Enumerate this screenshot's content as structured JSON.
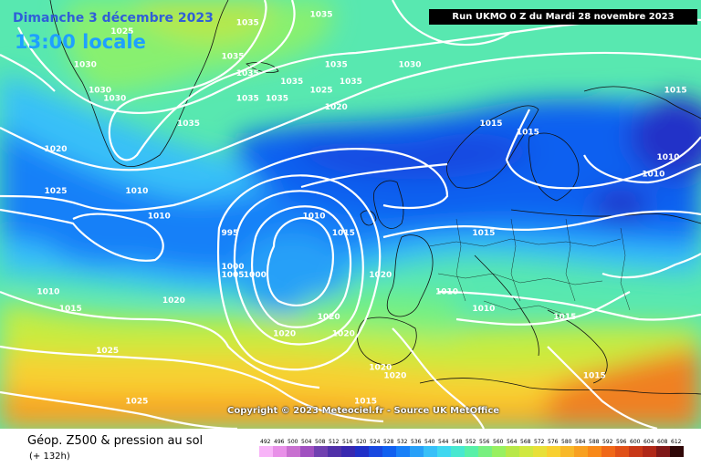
{
  "header": {
    "date": "Dimanche 3 décembre 2023",
    "time": "13:00 locale",
    "run": "Run UKMO 0 Z du Mardi 28 novembre 2023"
  },
  "copyright": "Copyright © 2023 Meteociel.fr - Source UK MetOffice",
  "legend": {
    "title": "Géop. Z500 & pression au sol",
    "subtitle": "(+ 132h)",
    "scale_values": [
      "492",
      "496",
      "500",
      "504",
      "508",
      "512",
      "516",
      "520",
      "524",
      "528",
      "532",
      "536",
      "540",
      "544",
      "548",
      "552",
      "556",
      "560",
      "564",
      "568",
      "572",
      "576",
      "580",
      "584",
      "588",
      "592",
      "596",
      "600",
      "604",
      "608",
      "612"
    ],
    "scale_colors": [
      "#f8b4f8",
      "#e890e8",
      "#c870d0",
      "#a050c0",
      "#7040b0",
      "#5030a8",
      "#3828b0",
      "#2030c8",
      "#1848e0",
      "#1060f0",
      "#1880f8",
      "#28a0f8",
      "#38c0f8",
      "#40d8f0",
      "#48e8d0",
      "#58f0a8",
      "#78f080",
      "#98f060",
      "#b8e848",
      "#d0e840",
      "#e8e038",
      "#f8d030",
      "#f8b828",
      "#f8a020",
      "#f88818",
      "#f06818",
      "#e05018",
      "#c83818",
      "#b02818",
      "#801818",
      "#300808"
    ]
  },
  "isobars": [
    {
      "value": "1025",
      "lon": -35,
      "lat": 74
    },
    {
      "value": "1030",
      "lon": -40,
      "lat": 70
    },
    {
      "value": "1030",
      "lon": -38,
      "lat": 67
    },
    {
      "value": "1030",
      "lon": -36,
      "lat": 66
    },
    {
      "value": "1035",
      "lon": -26,
      "lat": 63
    },
    {
      "value": "1035",
      "lon": -18,
      "lat": 75
    },
    {
      "value": "1035",
      "lon": -20,
      "lat": 71
    },
    {
      "value": "1035",
      "lon": -18,
      "lat": 69
    },
    {
      "value": "1035",
      "lon": -18,
      "lat": 66
    },
    {
      "value": "1035",
      "lon": -14,
      "lat": 66
    },
    {
      "value": "1035",
      "lon": -12,
      "lat": 68
    },
    {
      "value": "1035",
      "lon": -6,
      "lat": 70
    },
    {
      "value": "1035",
      "lon": -4,
      "lat": 68
    },
    {
      "value": "1030",
      "lon": 4,
      "lat": 70
    },
    {
      "value": "1035",
      "lon": -8,
      "lat": 76
    },
    {
      "value": "1025",
      "lon": -8,
      "lat": 67
    },
    {
      "value": "1020",
      "lon": -6,
      "lat": 65
    },
    {
      "value": "1020",
      "lon": -44,
      "lat": 60
    },
    {
      "value": "1025",
      "lon": -44,
      "lat": 55
    },
    {
      "value": "1010",
      "lon": -33,
      "lat": 55
    },
    {
      "value": "1010",
      "lon": -30,
      "lat": 52
    },
    {
      "value": "995",
      "lon": -20,
      "lat": 50
    },
    {
      "value": "1000",
      "lon": -20,
      "lat": 46
    },
    {
      "value": "1005",
      "lon": -20,
      "lat": 45
    },
    {
      "value": "1000",
      "lon": -17,
      "lat": 45
    },
    {
      "value": "1010",
      "lon": -9,
      "lat": 52
    },
    {
      "value": "1015",
      "lon": -5,
      "lat": 50
    },
    {
      "value": "1015",
      "lon": 15,
      "lat": 63
    },
    {
      "value": "1015",
      "lon": 20,
      "lat": 62
    },
    {
      "value": "1015",
      "lon": 40,
      "lat": 67
    },
    {
      "value": "1010",
      "lon": 39,
      "lat": 59
    },
    {
      "value": "1010",
      "lon": 37,
      "lat": 57
    },
    {
      "value": "1015",
      "lon": 14,
      "lat": 50
    },
    {
      "value": "1020",
      "lon": 0,
      "lat": 45
    },
    {
      "value": "1010",
      "lon": 9,
      "lat": 43
    },
    {
      "value": "1010",
      "lon": 14,
      "lat": 41
    },
    {
      "value": "1015",
      "lon": 25,
      "lat": 40
    },
    {
      "value": "1020",
      "lon": -7,
      "lat": 40
    },
    {
      "value": "1020",
      "lon": -5,
      "lat": 38
    },
    {
      "value": "1020",
      "lon": -13,
      "lat": 38
    },
    {
      "value": "1020",
      "lon": -28,
      "lat": 42
    },
    {
      "value": "1015",
      "lon": -42,
      "lat": 41
    },
    {
      "value": "1010",
      "lon": -45,
      "lat": 43
    },
    {
      "value": "1025",
      "lon": -37,
      "lat": 36
    },
    {
      "value": "1025",
      "lon": -33,
      "lat": 30
    },
    {
      "value": "1020",
      "lon": 0,
      "lat": 34
    },
    {
      "value": "1020",
      "lon": 2,
      "lat": 33
    },
    {
      "value": "1015",
      "lon": 29,
      "lat": 33
    },
    {
      "value": "1015",
      "lon": -2,
      "lat": 30
    }
  ]
}
